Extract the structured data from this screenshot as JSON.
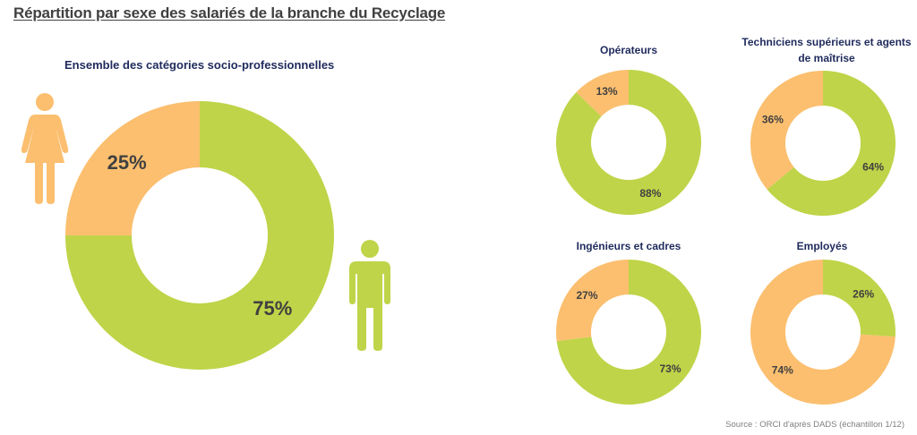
{
  "page": {
    "title": "Répartition par sexe des salariés de la branche du Recyclage",
    "source": "Source : ORCI d'après DADS (échantillon 1/12)"
  },
  "colors": {
    "male": "#bfd448",
    "female": "#fbbf6f"
  },
  "icons": [
    "female-figure-icon",
    "male-figure-icon"
  ],
  "chart_data": [
    {
      "type": "pie",
      "title": "Ensemble des catégories socio-professionnelles",
      "donut": true,
      "slices": [
        {
          "label": "Hommes",
          "value": 75,
          "display": "75%",
          "color": "#bfd448"
        },
        {
          "label": "Femmes",
          "value": 25,
          "display": "25%",
          "color": "#fbbf6f"
        }
      ]
    },
    {
      "type": "pie",
      "title": "Opérateurs",
      "donut": true,
      "slices": [
        {
          "label": "Hommes",
          "value": 88,
          "display": "88%",
          "color": "#bfd448"
        },
        {
          "label": "Femmes",
          "value": 13,
          "display": "13%",
          "color": "#fbbf6f"
        }
      ]
    },
    {
      "type": "pie",
      "title": "Techniciens supérieurs et agents de maîtrise",
      "donut": true,
      "slices": [
        {
          "label": "Hommes",
          "value": 64,
          "display": "64%",
          "color": "#bfd448"
        },
        {
          "label": "Femmes",
          "value": 36,
          "display": "36%",
          "color": "#fbbf6f"
        }
      ]
    },
    {
      "type": "pie",
      "title": "Ingénieurs et cadres",
      "donut": true,
      "slices": [
        {
          "label": "Hommes",
          "value": 73,
          "display": "73%",
          "color": "#bfd448"
        },
        {
          "label": "Femmes",
          "value": 27,
          "display": "27%",
          "color": "#fbbf6f"
        }
      ]
    },
    {
      "type": "pie",
      "title": "Employés",
      "donut": true,
      "slices": [
        {
          "label": "Hommes",
          "value": 26,
          "display": "26%",
          "color": "#bfd448"
        },
        {
          "label": "Femmes",
          "value": 74,
          "display": "74%",
          "color": "#fbbf6f"
        }
      ]
    }
  ]
}
